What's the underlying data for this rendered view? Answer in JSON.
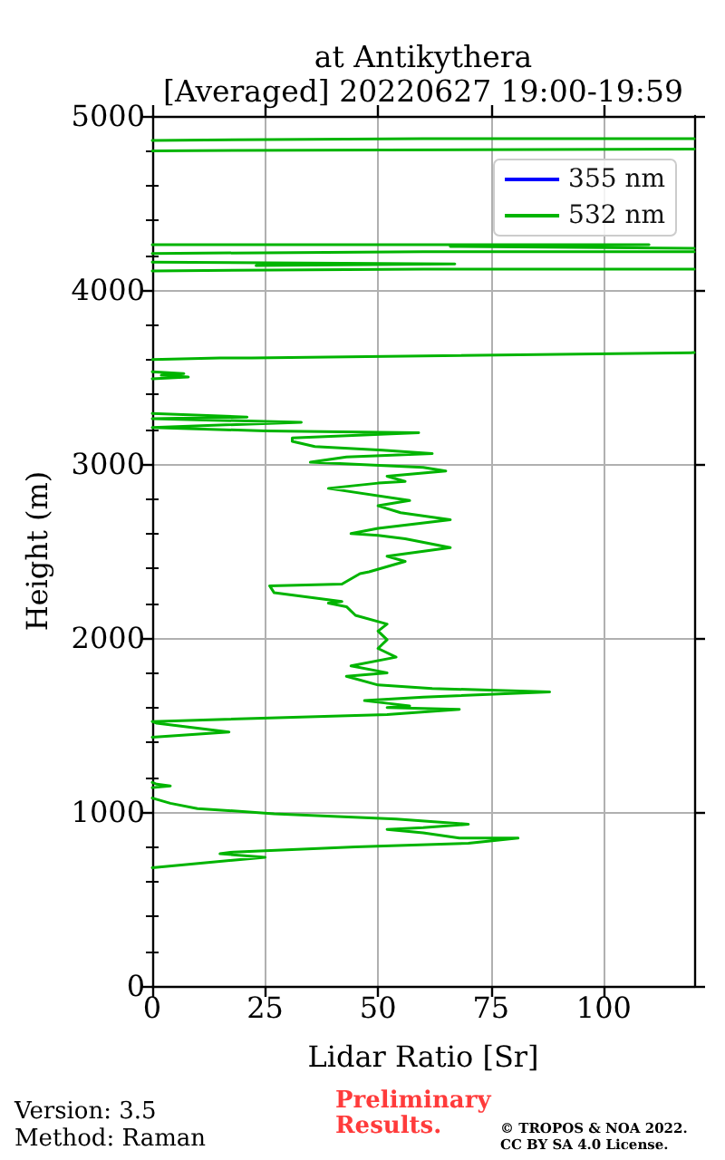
{
  "chart_data": {
    "type": "line",
    "title": "at Antikythera",
    "subtitle": "[Averaged] 20220627 19:00-19:59",
    "xlabel": "Lidar Ratio [Sr]",
    "ylabel": "Height (m)",
    "xlim": [
      0,
      120
    ],
    "xticks": [
      0,
      25,
      50,
      75,
      100
    ],
    "ylim": [
      0,
      5000
    ],
    "yticks": [
      0,
      {
        "value": 200,
        "label": null
      },
      {
        "value": 400,
        "label": null
      },
      {
        "value": 600,
        "label": null
      },
      {
        "value": 800,
        "label": null
      },
      1000,
      {
        "value": 1200,
        "label": null
      },
      {
        "value": 1400,
        "label": null
      },
      {
        "value": 1600,
        "label": null
      },
      {
        "value": 1800,
        "label": null
      },
      2000,
      {
        "value": 2200,
        "label": null
      },
      {
        "value": 2400,
        "label": null
      },
      {
        "value": 2600,
        "label": null
      },
      {
        "value": 2800,
        "label": null
      },
      3000,
      {
        "value": 3200,
        "label": null
      },
      {
        "value": 3400,
        "label": null
      },
      {
        "value": 3600,
        "label": null
      },
      {
        "value": 3800,
        "label": null
      },
      4000,
      {
        "value": 4200,
        "label": null
      },
      {
        "value": 4400,
        "label": null
      },
      {
        "value": 4600,
        "label": null
      },
      {
        "value": 4800,
        "label": null
      },
      5000
    ],
    "grid": true,
    "legend": "top right",
    "marker": "none",
    "series": [
      {
        "name": "355 nm",
        "color": "#0000ff"
      },
      {
        "name": "532 nm",
        "color": "#00b400",
        "x": [
          0,
          25,
          15,
          18,
          45,
          70,
          81,
          68,
          60,
          52,
          60,
          70,
          54,
          27,
          10,
          4,
          0,
          null,
          0,
          4,
          1,
          0,
          null,
          0,
          17,
          1,
          0,
          52,
          68,
          52,
          57,
          47,
          60,
          88,
          62,
          50,
          43,
          52,
          44,
          54,
          50,
          52,
          50,
          52,
          45,
          43,
          39,
          42,
          27,
          26,
          42,
          46,
          48,
          56,
          52,
          66,
          56,
          50,
          44,
          50,
          66,
          55,
          50,
          57,
          39,
          50,
          56,
          52,
          65,
          60,
          35,
          43,
          62,
          51,
          36,
          31,
          31,
          59,
          25,
          0,
          33,
          0,
          21,
          0,
          null,
          0,
          8,
          2,
          7,
          0,
          null,
          0,
          15,
          22,
          120,
          null,
          0,
          60,
          120,
          null,
          23,
          67,
          0,
          null,
          0,
          60,
          120,
          null,
          0,
          110,
          66,
          120,
          null,
          0,
          120,
          null,
          0,
          60,
          120
        ],
        "values": [
          680,
          740,
          760,
          770,
          800,
          820,
          850,
          850,
          880,
          900,
          910,
          930,
          960,
          990,
          1020,
          1050,
          1080,
          null,
          1140,
          1150,
          1160,
          1170,
          null,
          1430,
          1460,
          1510,
          1520,
          1560,
          1590,
          1600,
          1610,
          1640,
          1660,
          1690,
          1710,
          1730,
          1780,
          1800,
          1840,
          1890,
          1940,
          1990,
          2040,
          2080,
          2130,
          2180,
          2200,
          2210,
          2260,
          2300,
          2310,
          2370,
          2380,
          2440,
          2470,
          2520,
          2570,
          2590,
          2600,
          2630,
          2680,
          2720,
          2760,
          2790,
          2860,
          2890,
          2900,
          2930,
          2960,
          2980,
          3010,
          3040,
          3060,
          3080,
          3100,
          3130,
          3150,
          3180,
          3190,
          3210,
          3240,
          3260,
          3270,
          3290,
          null,
          3490,
          3500,
          3510,
          3520,
          3530,
          null,
          3600,
          3610,
          3610,
          3640,
          null,
          4110,
          4120,
          4120,
          null,
          4140,
          4150,
          4160,
          null,
          4210,
          4220,
          4220,
          null,
          4260,
          4260,
          4250,
          4240,
          null,
          4800,
          4810,
          null,
          4860,
          4870,
          4870
        ]
      }
    ],
    "annotations": [
      "Version: 3.5",
      "Method: Raman",
      "Preliminary Results.",
      "© TROPOS & NOA 2022. CC BY SA 4.0 License."
    ]
  }
}
